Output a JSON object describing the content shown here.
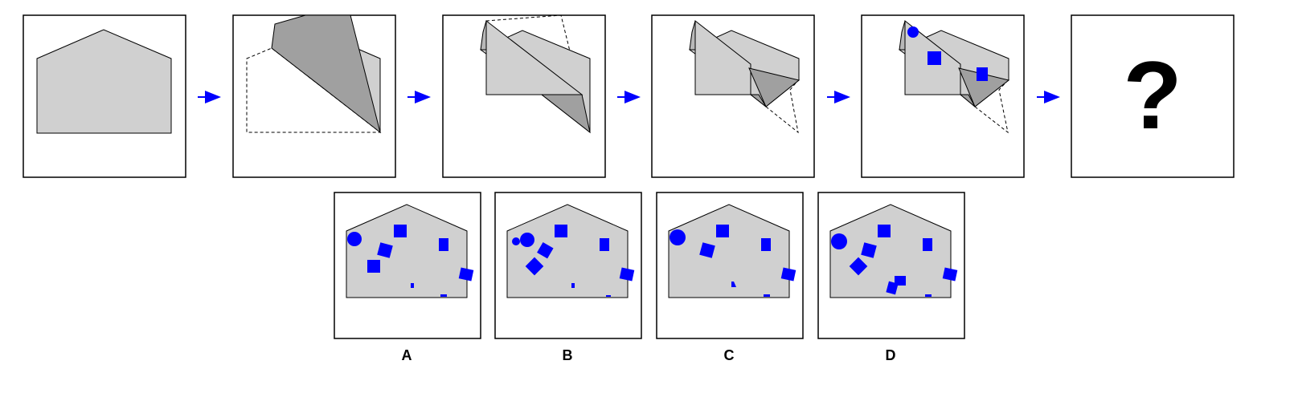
{
  "question_mark": "?",
  "options": [
    {
      "label": "A"
    },
    {
      "label": "B"
    },
    {
      "label": "C"
    },
    {
      "label": "D"
    }
  ],
  "colors": {
    "paper": "#d0d0d0",
    "paper_dark": "#a0a0a0",
    "hole": "#0000ff",
    "arrow": "#0000ff",
    "frame": "#000000"
  }
}
